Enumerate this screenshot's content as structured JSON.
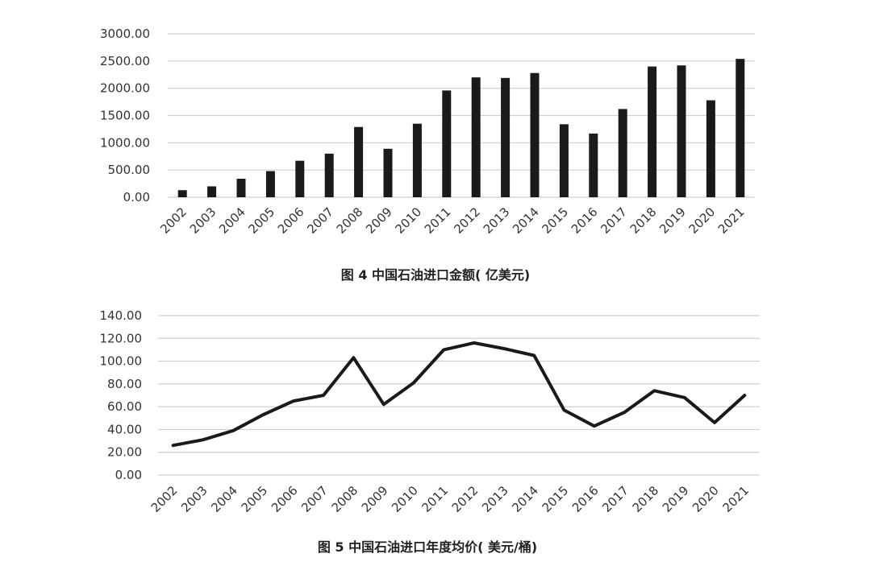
{
  "chart_data": [
    {
      "type": "bar",
      "title": "图 4 中国石油进口金额( 亿美元)",
      "categories": [
        "2002",
        "2003",
        "2004",
        "2005",
        "2006",
        "2007",
        "2008",
        "2009",
        "2010",
        "2011",
        "2012",
        "2013",
        "2014",
        "2015",
        "2016",
        "2017",
        "2018",
        "2019",
        "2020",
        "2021"
      ],
      "values": [
        130,
        200,
        340,
        480,
        670,
        800,
        1290,
        890,
        1350,
        1960,
        2200,
        2190,
        2280,
        1340,
        1170,
        1620,
        2400,
        2420,
        1780,
        2540
      ],
      "ylim": [
        0,
        3000
      ],
      "yticks": [
        "0.00",
        "500.00",
        "1000.00",
        "1500.00",
        "2000.00",
        "2500.00",
        "3000.00"
      ],
      "grid": true,
      "colors": {
        "bar": "#1a1a1a",
        "grid": "#cfcfcf"
      }
    },
    {
      "type": "line",
      "title": "图 5 中国石油进口年度均价( 美元/桶)",
      "categories": [
        "2002",
        "2003",
        "2004",
        "2005",
        "2006",
        "2007",
        "2008",
        "2009",
        "2010",
        "2011",
        "2012",
        "2013",
        "2014",
        "2015",
        "2016",
        "2017",
        "2018",
        "2019",
        "2020",
        "2021"
      ],
      "values": [
        26,
        31,
        39,
        53,
        65,
        70,
        103,
        62,
        81,
        110,
        116,
        111,
        105,
        57,
        43,
        55,
        74,
        68,
        46,
        70
      ],
      "ylim": [
        0,
        140
      ],
      "yticks": [
        "0.00",
        "20.00",
        "40.00",
        "60.00",
        "80.00",
        "100.00",
        "120.00",
        "140.00"
      ],
      "grid": true,
      "colors": {
        "line": "#1a1a1a",
        "grid": "#cfcfcf"
      }
    }
  ]
}
